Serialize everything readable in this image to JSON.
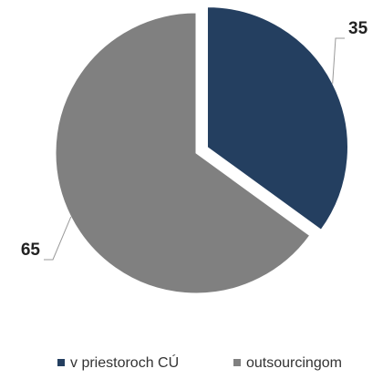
{
  "chart_data": {
    "type": "pie",
    "categories": [
      "v priestoroch CÚ",
      "outsourcingom"
    ],
    "values": [
      35,
      65
    ],
    "colors": [
      "#243f60",
      "#808080"
    ],
    "legend": "bottom"
  }
}
